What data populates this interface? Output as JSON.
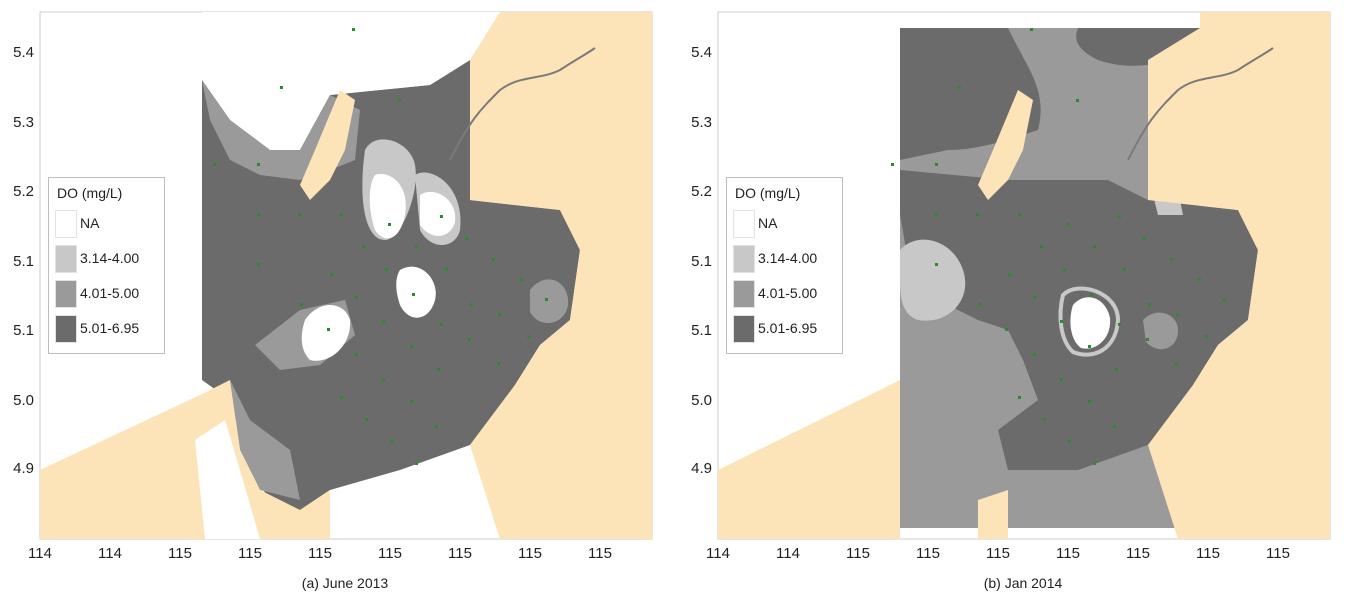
{
  "legend": {
    "title": "DO (mg/L)",
    "items": [
      {
        "label": "NA",
        "color": "#ffffff"
      },
      {
        "label": "3.14-4.00",
        "color": "#c8c8c8"
      },
      {
        "label": "4.01-5.00",
        "color": "#9a9a9a"
      },
      {
        "label": "5.01-6.95",
        "color": "#6b6b6b"
      }
    ]
  },
  "colors": {
    "land": "#fce4b8",
    "river": "#7a7a7a",
    "station": "#2c8a2c"
  },
  "y_ticks": [
    "5.4",
    "5.3",
    "5.2",
    "5.1",
    "5.1",
    "5.0",
    "4.9"
  ],
  "x_ticks": [
    "114",
    "114",
    "115",
    "115",
    "115",
    "115",
    "115",
    "115",
    "115"
  ],
  "panels": [
    {
      "caption": "(a) June 2013"
    },
    {
      "caption": "(b) Jan 2014"
    }
  ]
}
